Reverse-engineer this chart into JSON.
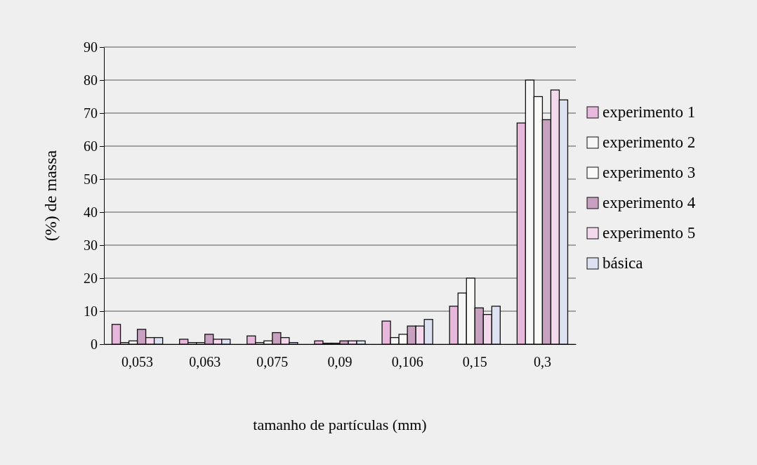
{
  "chart_data": {
    "type": "bar",
    "xlabel": "tamanho de partículas (mm)",
    "ylabel": "(%) de massa",
    "categories": [
      "0,053",
      "0,063",
      "0,075",
      "0,09",
      "0,106",
      "0,15",
      "0,3"
    ],
    "series": [
      {
        "name": "experimento 1",
        "color": "#e8b8dc",
        "values": [
          6,
          1.5,
          2.5,
          1,
          7,
          11.5,
          67
        ]
      },
      {
        "name": "experimento 2",
        "color": "#f6f6f6",
        "values": [
          0.5,
          0.5,
          0.5,
          0.3,
          2,
          15.5,
          80
        ]
      },
      {
        "name": "experimento 3",
        "color": "#fafaf6",
        "values": [
          1,
          0.5,
          1,
          0.3,
          3,
          20,
          75
        ]
      },
      {
        "name": "experimento 4",
        "color": "#c8a0c0",
        "values": [
          4.5,
          3,
          3.5,
          1,
          5.5,
          11,
          68
        ]
      },
      {
        "name": "experimento 5",
        "color": "#f4d8ec",
        "values": [
          2,
          1.5,
          2,
          1,
          5.5,
          9,
          77
        ]
      },
      {
        "name": "básica",
        "color": "#dde2f2",
        "values": [
          2,
          1.5,
          0.5,
          1,
          7.5,
          11.5,
          74
        ]
      }
    ],
    "ylim": [
      0,
      90
    ],
    "yticks": [
      0,
      10,
      20,
      30,
      40,
      50,
      60,
      70,
      80,
      90
    ],
    "grid": "y",
    "legend": "right"
  }
}
